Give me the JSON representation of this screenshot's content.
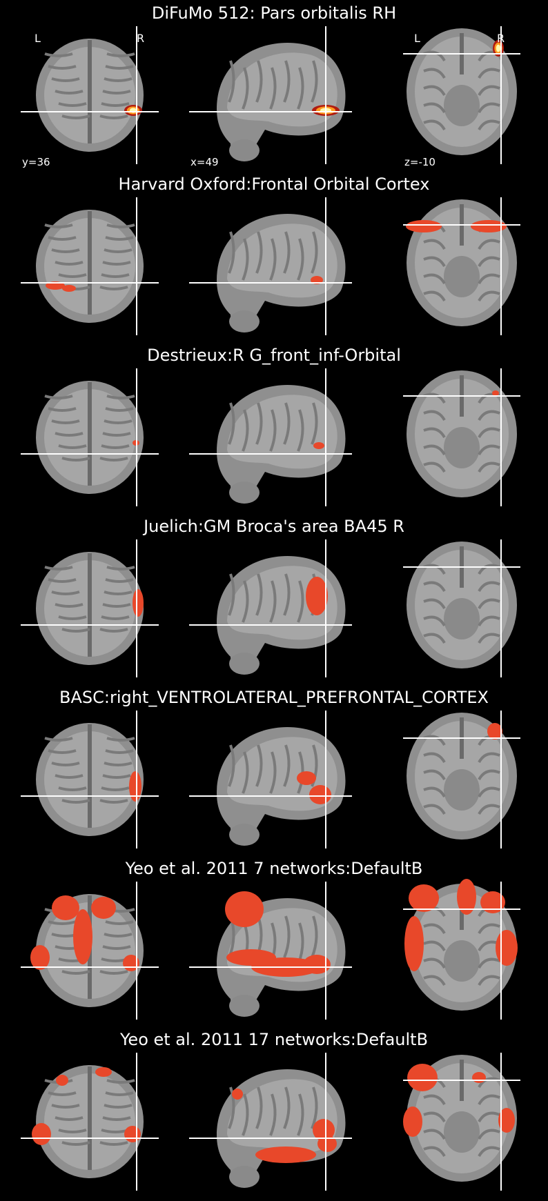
{
  "figure": {
    "rows": [
      {
        "title": "DiFuMo 512: Pars orbitalis RH",
        "style": "heat",
        "show_labels": true,
        "coords": {
          "coronal": "y=36",
          "sagittal": "x=49",
          "axial": "z=-10"
        },
        "orient": {
          "left": "L",
          "right": "R"
        }
      },
      {
        "title": "Harvard Oxford:Frontal Orbital Cortex",
        "style": "flat"
      },
      {
        "title": "Destrieux:R G_front_inf-Orbital",
        "style": "flat"
      },
      {
        "title": "Juelich:GM Broca's area BA45 R",
        "style": "flat"
      },
      {
        "title": "BASC:right_VENTROLATERAL_PREFRONTAL_CORTEX",
        "style": "flat"
      },
      {
        "title": "Yeo et al. 2011 7 networks:DefaultB",
        "style": "flat"
      },
      {
        "title": "Yeo et al. 2011 17 networks:DefaultB",
        "style": "flat"
      }
    ],
    "colors": {
      "background": "#000000",
      "overlay": "#e8482a",
      "heat_core": "#fff9b0",
      "crosshair": "#ffffff"
    }
  }
}
